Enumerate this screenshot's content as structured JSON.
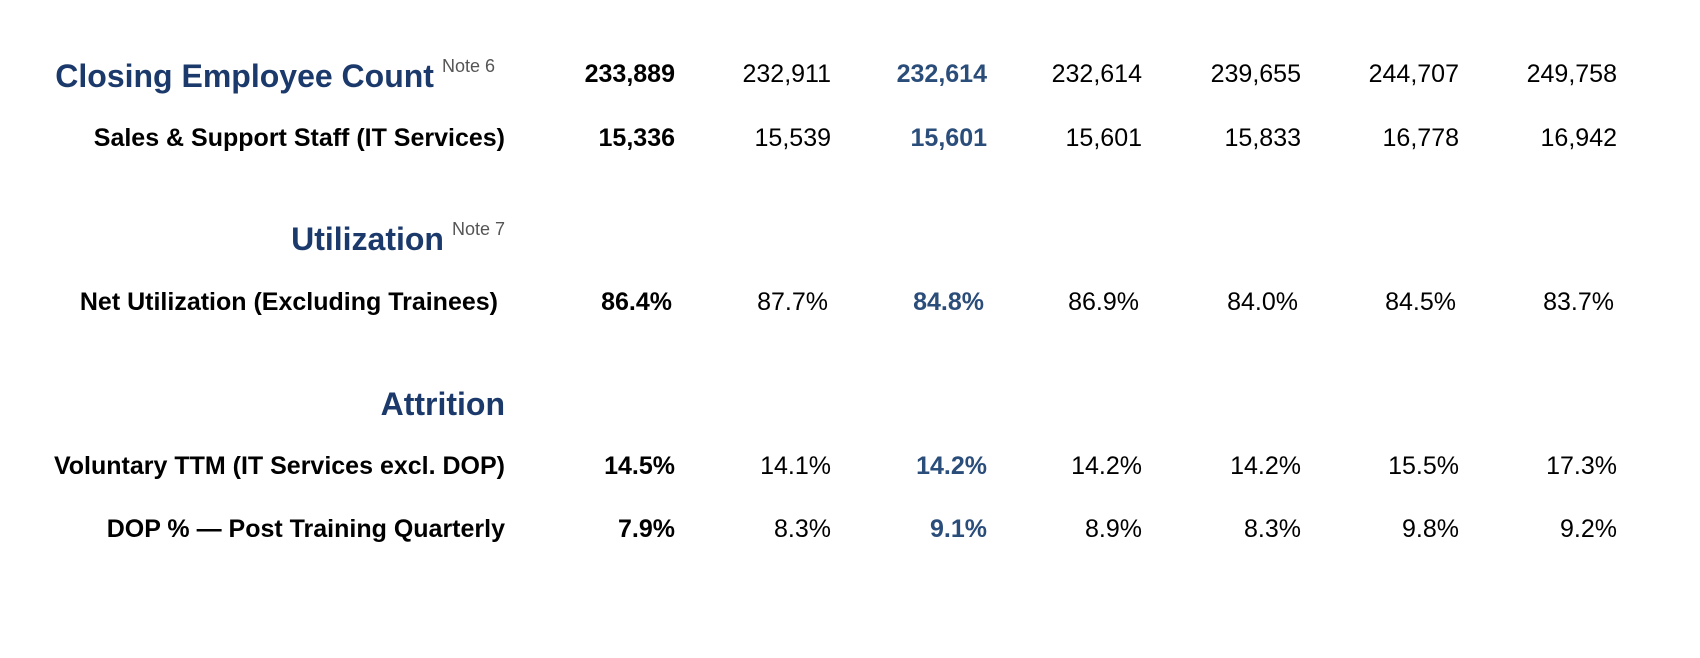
{
  "sections": {
    "headcount": {
      "title": "Closing Employee Count",
      "note": "Note 6",
      "values": [
        "233,889",
        "232,911",
        "232,614",
        "232,614",
        "239,655",
        "244,707",
        "249,758"
      ]
    },
    "sales_support": {
      "label": "Sales & Support Staff (IT Services)",
      "values": [
        "15,336",
        "15,539",
        "15,601",
        "15,601",
        "15,833",
        "16,778",
        "16,942"
      ]
    },
    "utilization": {
      "title": "Utilization",
      "note": "Note 7"
    },
    "net_utilization": {
      "label": "Net Utilization (Excluding Trainees)",
      "values": [
        "86.4%",
        "87.7%",
        "84.8%",
        "86.9%",
        "84.0%",
        "84.5%",
        "83.7%"
      ]
    },
    "attrition": {
      "title": "Attrition"
    },
    "voluntary_ttm": {
      "label": "Voluntary TTM (IT Services excl. DOP)",
      "values": [
        "14.5%",
        "14.1%",
        "14.2%",
        "14.2%",
        "14.2%",
        "15.5%",
        "17.3%"
      ]
    },
    "dop_post_training": {
      "label": "DOP % — Post Training Quarterly",
      "values": [
        "7.9%",
        "8.3%",
        "9.1%",
        "8.9%",
        "8.3%",
        "9.8%",
        "9.2%"
      ]
    }
  },
  "colors": {
    "section_title": "#1b3a6b",
    "highlight_column": "#2a4d7a",
    "note": "#555555"
  }
}
